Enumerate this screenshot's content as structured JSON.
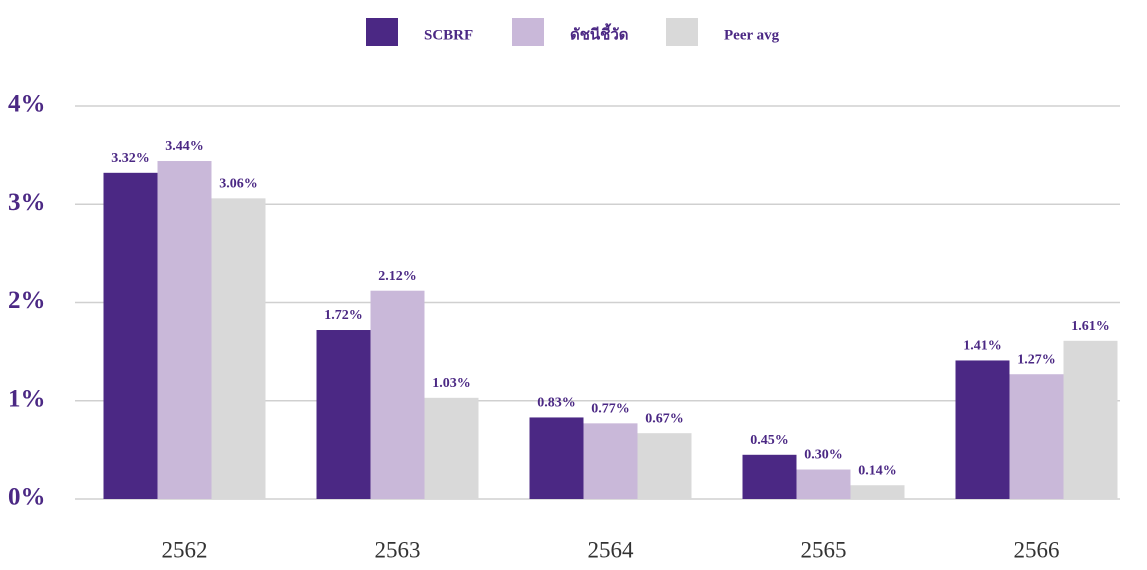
{
  "chart_data": {
    "type": "bar",
    "categories": [
      "2562",
      "2563",
      "2564",
      "2565",
      "2566"
    ],
    "series": [
      {
        "name": "SCBRF",
        "color": "#4b2884",
        "values": [
          3.32,
          1.72,
          0.83,
          0.45,
          1.41
        ],
        "value_labels": [
          "3.32%",
          "1.72%",
          "0.83%",
          "0.45%",
          "1.41%"
        ]
      },
      {
        "name": "ดัชนีชี้วัด",
        "color": "#c9b8d9",
        "values": [
          3.44,
          2.12,
          0.77,
          0.3,
          1.27
        ],
        "value_labels": [
          "3.44%",
          "2.12%",
          "0.77%",
          "0.30%",
          "1.27%"
        ]
      },
      {
        "name": "Peer avg",
        "color": "#d9d9d9",
        "values": [
          3.06,
          1.03,
          0.67,
          0.14,
          1.61
        ],
        "value_labels": [
          "3.06%",
          "1.03%",
          "0.67%",
          "0.14%",
          "1.61%"
        ]
      }
    ],
    "ylim": [
      0,
      4
    ],
    "yticks": [
      {
        "value": 0,
        "label": "0%"
      },
      {
        "value": 1,
        "label": "1%"
      },
      {
        "value": 2,
        "label": "2%"
      },
      {
        "value": 3,
        "label": "3%"
      },
      {
        "value": 4,
        "label": "4%"
      }
    ],
    "grid": true
  }
}
